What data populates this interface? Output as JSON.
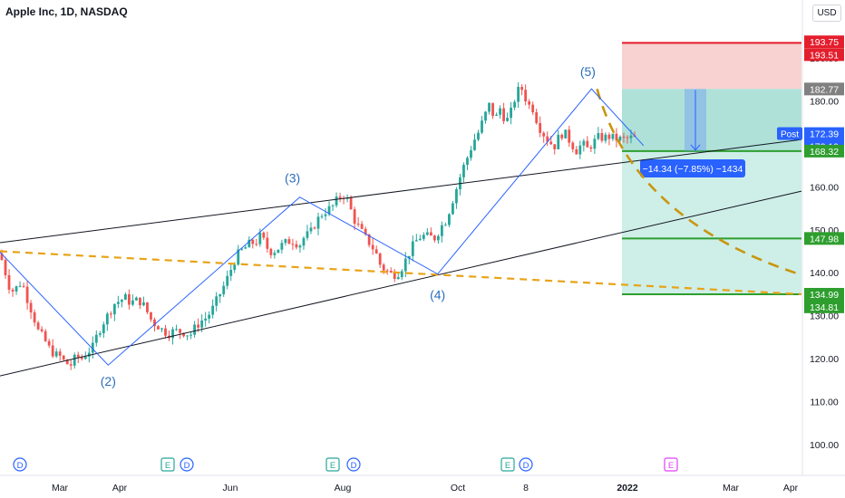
{
  "header": {
    "title": "Apple Inc, 1D, NASDAQ",
    "currency": "USD"
  },
  "colors": {
    "up": "#26a69a",
    "down": "#ef5350",
    "trend": "#131722",
    "wave": "#2962ff",
    "projection": "#e8a317",
    "target": "#2e9e2e",
    "stop_zone": "#f7c9c9",
    "profit_zone": "#c6ebe4",
    "stop_line": "#e41e2d"
  },
  "chart_data": {
    "type": "line",
    "title": "Apple Inc, 1D, NASDAQ",
    "xlabel": "",
    "ylabel": "",
    "ylim": [
      95,
      197
    ],
    "grid": false,
    "x_ticks": [
      "Mar",
      "Apr",
      "Jun",
      "Aug",
      "Oct",
      "8",
      "2022",
      "Mar",
      "Apr"
    ],
    "y_ticks": [
      100,
      110,
      120,
      130,
      140,
      150,
      160,
      170,
      180,
      190
    ],
    "price_labels": [
      {
        "value": 193.75,
        "label": "193.75",
        "color": "#e41e2d"
      },
      {
        "value": 193.51,
        "label": "193.51",
        "color": "#e41e2d"
      },
      {
        "value": 182.77,
        "label": "182.77",
        "color": "#808080"
      },
      {
        "value": 172.39,
        "label": "172.39",
        "color": "#2962ff"
      },
      {
        "value": 172.19,
        "label": "172.19",
        "color": "#2962ff"
      },
      {
        "value": 168.32,
        "label": "168.32",
        "color": "#2e9e2e"
      },
      {
        "value": 147.98,
        "label": "147.98",
        "color": "#2e9e2e"
      },
      {
        "value": 134.99,
        "label": "134.99",
        "color": "#2e9e2e"
      },
      {
        "value": 134.81,
        "label": "134.81",
        "color": "#2e9e2e"
      }
    ],
    "post_label": "Post",
    "series": [
      {
        "kind": "price_path",
        "x": [
          0,
          6,
          12,
          18,
          24,
          30,
          36,
          42,
          48,
          54,
          60,
          66,
          72,
          78,
          84,
          90,
          96,
          102,
          108,
          114,
          120,
          126,
          132,
          138,
          144,
          150,
          156,
          162,
          168,
          174,
          180,
          186,
          192,
          198,
          204,
          210,
          216,
          222,
          228,
          234,
          240,
          246,
          252,
          258,
          264,
          270,
          276,
          282,
          288,
          294,
          300,
          306,
          312,
          318,
          324,
          330,
          336,
          342,
          348,
          354,
          360,
          366,
          372,
          378,
          384,
          390,
          396,
          402,
          408,
          414,
          420,
          426,
          432,
          438,
          444,
          450,
          456,
          462,
          468,
          474,
          480,
          486,
          492,
          498,
          504,
          510,
          516,
          522,
          528,
          534,
          540,
          546,
          552,
          558,
          564,
          570,
          576,
          582,
          588,
          594,
          600,
          606,
          612,
          618,
          624,
          630,
          636,
          642,
          648,
          654,
          660,
          666,
          672,
          678,
          684,
          690,
          696,
          702
        ],
        "values": [
          144.5,
          140,
          135.5,
          136.5,
          138,
          134,
          130.5,
          126.5,
          124.8,
          122.5,
          121,
          120.5,
          119,
          118.5,
          120.5,
          120,
          121.5,
          122.5,
          126,
          128.5,
          130.5,
          132.8,
          133.5,
          134.2,
          133,
          133.5,
          133.3,
          131,
          128.5,
          127.7,
          126.5,
          125.8,
          126.5,
          126.3,
          126.1,
          125.5,
          127.5,
          128.8,
          129.6,
          131.4,
          134,
          136.5,
          139.3,
          142.6,
          144.8,
          145.7,
          146.9,
          147,
          148.8,
          145.9,
          144.8,
          145.6,
          146.6,
          147.3,
          147.5,
          146.3,
          148.5,
          149.1,
          151.6,
          153.5,
          154.5,
          155.2,
          157,
          158.4,
          156.6,
          152.6,
          150.5,
          148.4,
          146.8,
          144.9,
          141.5,
          140.5,
          139.6,
          139.7,
          141.5,
          144.1,
          146.5,
          148.2,
          148.6,
          148.3,
          148.1,
          150.6,
          152.2,
          156.1,
          160,
          164,
          167.1,
          170.5,
          172.8,
          176.2,
          179.2,
          175.5,
          178.5,
          174.9,
          177.6,
          182.2,
          182.8,
          179.2,
          178.2,
          174.2,
          172.2,
          170.4,
          169.5,
          172.4,
          172.2,
          170.1,
          168.4,
          170.1,
          168.8,
          170.2,
          171.5,
          171.4,
          171.7,
          171.2,
          171.1,
          171.1,
          171.4,
          171.2
        ]
      },
      {
        "name": "",
        "kind": "wave",
        "points": [
          [
            0,
            144.8
          ],
          [
            13.5,
            118.5
          ],
          [
            37.4,
            157.6
          ],
          [
            54.6,
            139.7
          ],
          [
            73.8,
            182.8
          ],
          [
            80.3,
            169.6
          ]
        ]
      }
    ],
    "wave_labels": [
      "(2)",
      "(3)",
      "(4)",
      "(5)"
    ],
    "trendlines": [
      {
        "from": [
          0,
          147
        ],
        "to": [
          100,
          171
        ]
      },
      {
        "from": [
          0,
          116
        ],
        "to": [
          100,
          159
        ]
      }
    ],
    "projection_lines": [
      {
        "from": [
          0,
          145
        ],
        "to": [
          100,
          135
        ]
      },
      {
        "from": [
          74.5,
          182.8
        ],
        "to": [
          100,
          139.5
        ],
        "curve": true
      }
    ],
    "position": {
      "entry": 182.77,
      "stop": 193.51,
      "targets": [
        168.32,
        147.98,
        134.99
      ],
      "measure_label": "−14.34 (−7.85%) −1434"
    },
    "events": [
      {
        "x_label": "D"
      },
      {
        "x_label": "E"
      },
      {
        "x_label": "D"
      },
      {
        "x_label": "E"
      },
      {
        "x_label": "D"
      },
      {
        "x_label": "E"
      },
      {
        "x_label": "D"
      },
      {
        "x_label": "E"
      }
    ]
  }
}
